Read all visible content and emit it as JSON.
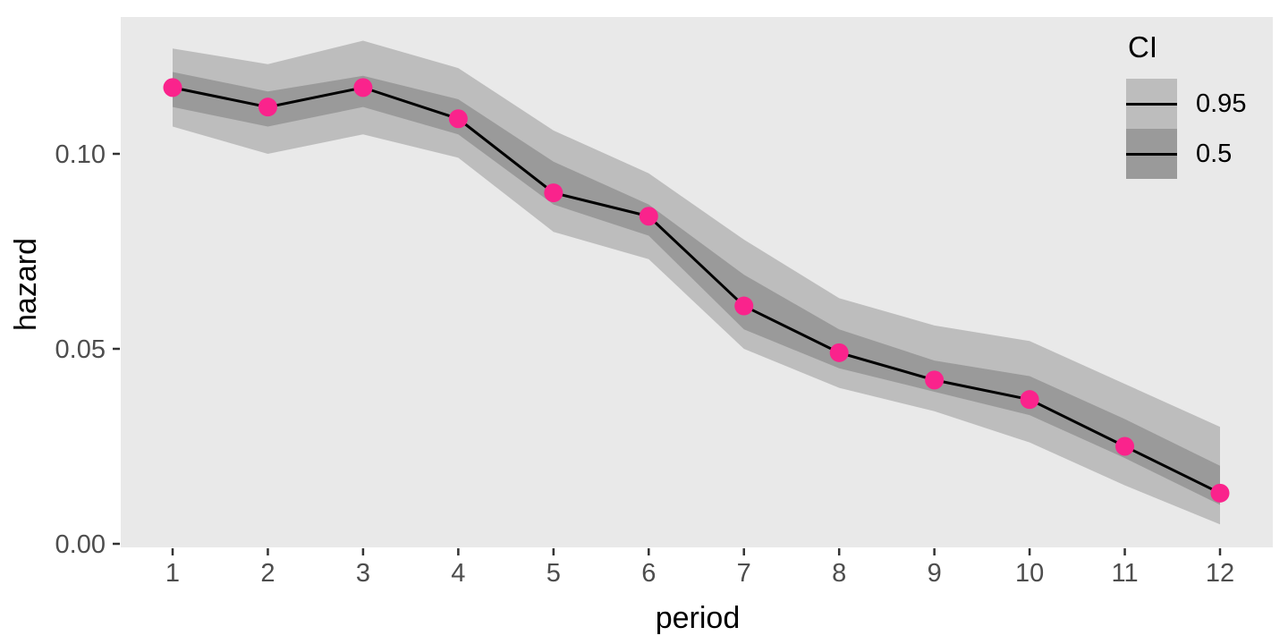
{
  "chart_data": {
    "type": "line",
    "title": "",
    "xlabel": "period",
    "ylabel": "hazard",
    "x": [
      1,
      2,
      3,
      4,
      5,
      6,
      7,
      8,
      9,
      10,
      11,
      12
    ],
    "x_tick_labels": [
      "1",
      "2",
      "3",
      "4",
      "5",
      "6",
      "7",
      "8",
      "9",
      "10",
      "11",
      "12"
    ],
    "y_tick_values": [
      0.0,
      0.05,
      0.1
    ],
    "y_tick_labels": [
      "0.00",
      "0.05",
      "0.10"
    ],
    "xlim": [
      0.45,
      12.55
    ],
    "ylim": [
      -0.001,
      0.1355
    ],
    "grid": false,
    "series": [
      {
        "name": "hazard",
        "values": [
          0.117,
          0.112,
          0.117,
          0.109,
          0.09,
          0.084,
          0.061,
          0.049,
          0.042,
          0.037,
          0.025,
          0.013
        ]
      },
      {
        "name": "ci50_lower",
        "values": [
          0.112,
          0.107,
          0.112,
          0.105,
          0.087,
          0.079,
          0.055,
          0.045,
          0.039,
          0.033,
          0.022,
          0.01
        ]
      },
      {
        "name": "ci50_upper",
        "values": [
          0.121,
          0.116,
          0.12,
          0.114,
          0.098,
          0.087,
          0.069,
          0.055,
          0.047,
          0.043,
          0.032,
          0.02
        ]
      },
      {
        "name": "ci95_lower",
        "values": [
          0.107,
          0.1,
          0.105,
          0.099,
          0.08,
          0.073,
          0.05,
          0.04,
          0.034,
          0.026,
          0.015,
          0.005
        ]
      },
      {
        "name": "ci95_upper",
        "values": [
          0.127,
          0.123,
          0.129,
          0.122,
          0.106,
          0.095,
          0.078,
          0.063,
          0.056,
          0.052,
          0.041,
          0.03
        ]
      }
    ],
    "legend": {
      "title": "CI",
      "position": "inside-top-right",
      "entries": [
        {
          "label": "0.95",
          "swatch_color": "#BDBDBD"
        },
        {
          "label": "0.5",
          "swatch_color": "#9A9A9A"
        }
      ]
    },
    "colors": {
      "point": "#FA238C",
      "line": "#000000",
      "ci95_ribbon": "#BDBDBD",
      "ci50_ribbon": "#9A9A9A",
      "panel_background": "#E9E9E9",
      "tick_text": "#4D4D4D",
      "tick_mark": "#333333"
    }
  }
}
